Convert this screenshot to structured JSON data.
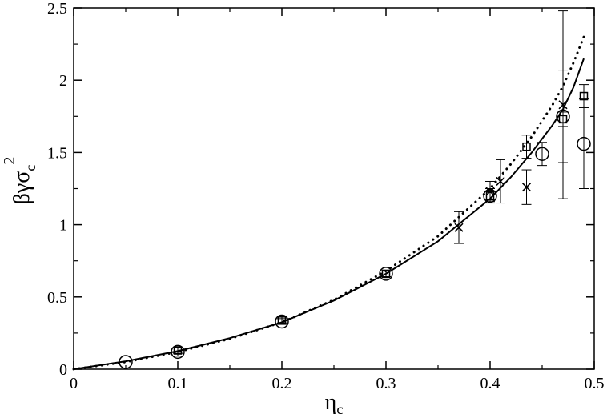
{
  "chart_data": {
    "type": "scatter",
    "title": "",
    "xlabel": {
      "main": "η",
      "sub": "c"
    },
    "ylabel": {
      "main": "βγσ",
      "sub": "c",
      "sup": "2"
    },
    "xlim": [
      0,
      0.5
    ],
    "ylim": [
      0,
      2.5
    ],
    "grid": false,
    "legend": "none",
    "xticks": [
      {
        "value": 0,
        "label": "0"
      },
      {
        "value": 0.1,
        "label": "0.1"
      },
      {
        "value": 0.2,
        "label": "0.2"
      },
      {
        "value": 0.3,
        "label": "0.3"
      },
      {
        "value": 0.4,
        "label": "0.4"
      },
      {
        "value": 0.5,
        "label": "0.5"
      }
    ],
    "yticks": [
      {
        "value": 0,
        "label": "0"
      },
      {
        "value": 0.5,
        "label": "0.5"
      },
      {
        "value": 1,
        "label": "1"
      },
      {
        "value": 1.5,
        "label": "1.5"
      },
      {
        "value": 2,
        "label": "2"
      },
      {
        "value": 2.5,
        "label": "2.5"
      }
    ],
    "lines": [
      {
        "style": "solid",
        "color": "#000000",
        "x": [
          0,
          0.05,
          0.1,
          0.15,
          0.2,
          0.25,
          0.3,
          0.35,
          0.4,
          0.42,
          0.44,
          0.46,
          0.47,
          0.48,
          0.49
        ],
        "y": [
          0,
          0.055,
          0.125,
          0.215,
          0.325,
          0.475,
          0.66,
          0.885,
          1.18,
          1.33,
          1.5,
          1.69,
          1.8,
          1.95,
          2.15
        ]
      },
      {
        "style": "dotted",
        "color": "#000000",
        "x": [
          0,
          0.05,
          0.1,
          0.15,
          0.2,
          0.25,
          0.3,
          0.35,
          0.4,
          0.42,
          0.44,
          0.46,
          0.47,
          0.48,
          0.49
        ],
        "y": [
          0,
          0.05,
          0.12,
          0.21,
          0.325,
          0.48,
          0.68,
          0.92,
          1.25,
          1.42,
          1.61,
          1.83,
          1.96,
          2.12,
          2.3
        ]
      }
    ],
    "series": [
      {
        "marker": "circle",
        "x": [
          0.05,
          0.1,
          0.2,
          0.3,
          0.4,
          0.45,
          0.47,
          0.49
        ],
        "y": [
          0.05,
          0.12,
          0.33,
          0.66,
          1.2,
          1.49,
          1.75,
          1.56
        ],
        "err": [
          0,
          0.03,
          0.02,
          0.02,
          0.05,
          0.08,
          0.32,
          0.31
        ]
      },
      {
        "marker": "square",
        "x": [
          0.1,
          0.2,
          0.3,
          0.4,
          0.435,
          0.47,
          0.49
        ],
        "y": [
          0.13,
          0.34,
          0.66,
          1.2,
          1.54,
          1.73,
          1.89
        ],
        "err": [
          0.02,
          0.02,
          0.02,
          0.03,
          0.08,
          0.05,
          0.08
        ]
      },
      {
        "marker": "cross",
        "x": [
          0.37,
          0.4,
          0.41,
          0.435,
          0.47
        ],
        "y": [
          0.98,
          1.23,
          1.3,
          1.26,
          1.83
        ],
        "err": [
          0.11,
          0.07,
          0.15,
          0.12,
          0.65
        ]
      }
    ]
  }
}
